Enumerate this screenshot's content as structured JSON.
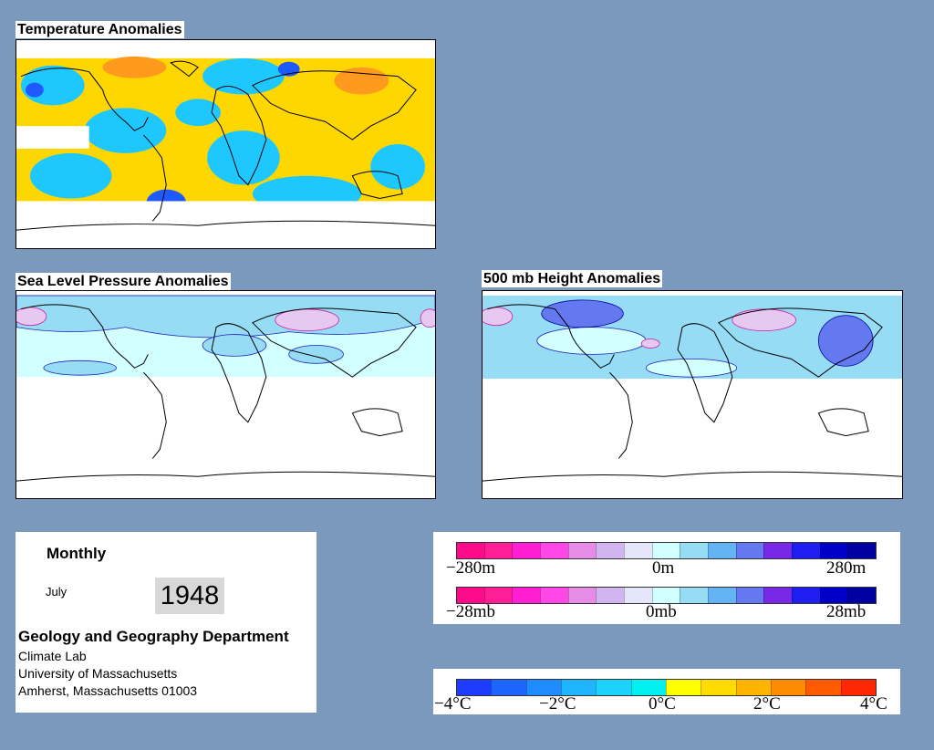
{
  "maps": {
    "temperature": {
      "title": "Temperature Anomalies"
    },
    "slp": {
      "title": "Sea Level Pressure Anomalies"
    },
    "height500": {
      "title": "500 mb Height Anomalies"
    }
  },
  "info": {
    "period": "Monthly",
    "month": "July",
    "year": "1948",
    "department": "Geology and Geography Department",
    "lab": "Climate Lab",
    "university": "University of Massachusetts",
    "address": "Amherst, Massachusetts 01003"
  },
  "legend_height": {
    "labels": [
      "−280m",
      "0m",
      "280m"
    ]
  },
  "legend_pressure": {
    "labels": [
      "−28mb",
      "0mb",
      "28mb"
    ]
  },
  "legend_temp": {
    "labels": [
      "−4°C",
      "−2°C",
      "0°C",
      "2°C",
      "4°C"
    ]
  },
  "colors": {
    "background": "#7b98bd",
    "anomaly_scale": [
      "#ff0a8a",
      "#ff1e96",
      "#ff1ed2",
      "#ff46e6",
      "#e68ce6",
      "#d2b4f0",
      "#e6e6fa",
      "#d2ffff",
      "#96dcf5",
      "#64b4f5",
      "#6478f0",
      "#7828e6",
      "#1e1ef0",
      "#0000c8",
      "#0000a0"
    ],
    "temp_scale": [
      "#1e3cff",
      "#1e64ff",
      "#1e8cff",
      "#1eb4ff",
      "#1ed2ff",
      "#00f0f0",
      "#ffff00",
      "#ffdc00",
      "#ffb400",
      "#ff8c00",
      "#ff5a00",
      "#ff2800"
    ]
  }
}
